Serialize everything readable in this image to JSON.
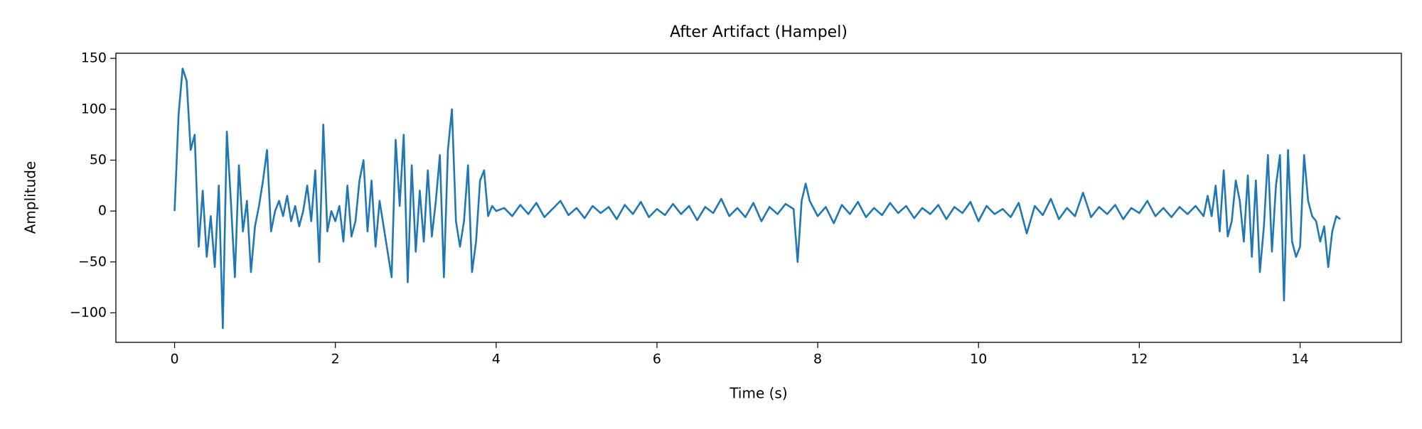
{
  "chart_data": {
    "type": "line",
    "title": "After Artifact (Hampel)",
    "x_label": "Time (s)",
    "y_label": "Amplitude",
    "xlim": [
      -0.73,
      15.26
    ],
    "ylim": [
      -129,
      155
    ],
    "xticks": [
      0,
      2,
      4,
      6,
      8,
      10,
      12,
      14
    ],
    "yticks": [
      {
        "value": -100,
        "label": "−100"
      },
      {
        "value": -50,
        "label": "−50"
      },
      0,
      50,
      100,
      150
    ],
    "color": "#1f77b4",
    "x": [
      0,
      0.05,
      0.1,
      0.15,
      0.2,
      0.25,
      0.3,
      0.35,
      0.4,
      0.45,
      0.5,
      0.55,
      0.6,
      0.65,
      0.7,
      0.75,
      0.8,
      0.85,
      0.9,
      0.95,
      1.0,
      1.05,
      1.1,
      1.15,
      1.2,
      1.25,
      1.3,
      1.35,
      1.4,
      1.45,
      1.5,
      1.55,
      1.6,
      1.65,
      1.7,
      1.75,
      1.8,
      1.85,
      1.9,
      1.95,
      2.0,
      2.05,
      2.1,
      2.15,
      2.2,
      2.25,
      2.3,
      2.35,
      2.4,
      2.45,
      2.5,
      2.55,
      2.6,
      2.65,
      2.7,
      2.75,
      2.8,
      2.85,
      2.9,
      2.95,
      3.0,
      3.05,
      3.1,
      3.15,
      3.2,
      3.25,
      3.3,
      3.35,
      3.4,
      3.45,
      3.5,
      3.55,
      3.6,
      3.65,
      3.7,
      3.75,
      3.8,
      3.85,
      3.9,
      3.95,
      4.0,
      4.1,
      4.2,
      4.3,
      4.4,
      4.5,
      4.6,
      4.7,
      4.8,
      4.9,
      5.0,
      5.1,
      5.2,
      5.3,
      5.4,
      5.5,
      5.6,
      5.7,
      5.8,
      5.9,
      6.0,
      6.1,
      6.2,
      6.3,
      6.4,
      6.5,
      6.6,
      6.7,
      6.8,
      6.9,
      7.0,
      7.1,
      7.2,
      7.3,
      7.4,
      7.5,
      7.6,
      7.7,
      7.75,
      7.8,
      7.85,
      7.9,
      8.0,
      8.1,
      8.2,
      8.3,
      8.4,
      8.5,
      8.6,
      8.7,
      8.8,
      8.9,
      9.0,
      9.1,
      9.2,
      9.3,
      9.4,
      9.5,
      9.6,
      9.7,
      9.8,
      9.9,
      10.0,
      10.1,
      10.2,
      10.3,
      10.4,
      10.5,
      10.6,
      10.7,
      10.8,
      10.9,
      11.0,
      11.1,
      11.2,
      11.3,
      11.4,
      11.5,
      11.6,
      11.7,
      11.8,
      11.9,
      12.0,
      12.1,
      12.2,
      12.3,
      12.4,
      12.5,
      12.6,
      12.7,
      12.8,
      12.85,
      12.9,
      12.95,
      13.0,
      13.05,
      13.1,
      13.15,
      13.2,
      13.25,
      13.3,
      13.35,
      13.4,
      13.45,
      13.5,
      13.55,
      13.6,
      13.65,
      13.7,
      13.75,
      13.8,
      13.85,
      13.9,
      13.95,
      14.0,
      14.05,
      14.1,
      14.15,
      14.2,
      14.25,
      14.3,
      14.35,
      14.4,
      14.45,
      14.5
    ],
    "values": [
      0,
      95,
      140,
      128,
      60,
      75,
      -35,
      20,
      -45,
      -5,
      -55,
      25,
      -115,
      78,
      10,
      -65,
      45,
      -20,
      10,
      -60,
      -15,
      5,
      30,
      60,
      -20,
      0,
      10,
      -5,
      15,
      -10,
      5,
      -15,
      0,
      25,
      -10,
      40,
      -50,
      85,
      -20,
      0,
      -10,
      5,
      -30,
      25,
      -25,
      -10,
      30,
      50,
      -20,
      30,
      -35,
      10,
      -15,
      -40,
      -65,
      70,
      5,
      75,
      -70,
      45,
      -40,
      20,
      -30,
      40,
      -25,
      10,
      55,
      -65,
      60,
      100,
      -10,
      -35,
      -10,
      45,
      -60,
      -30,
      30,
      40,
      -5,
      5,
      0,
      3,
      -5,
      6,
      -3,
      8,
      -6,
      2,
      10,
      -4,
      3,
      -7,
      5,
      -2,
      4,
      -8,
      6,
      -3,
      9,
      -6,
      2,
      -4,
      7,
      -3,
      5,
      -9,
      4,
      -2,
      12,
      -5,
      3,
      -6,
      8,
      -10,
      4,
      -3,
      7,
      2,
      -50,
      10,
      27,
      10,
      -5,
      4,
      -12,
      6,
      -3,
      9,
      -6,
      3,
      -4,
      8,
      -2,
      5,
      -7,
      3,
      -3,
      6,
      -8,
      4,
      -2,
      9,
      -10,
      5,
      -3,
      2,
      -6,
      8,
      -22,
      5,
      -4,
      12,
      -8,
      3,
      -5,
      18,
      -6,
      4,
      -3,
      6,
      -8,
      3,
      -2,
      10,
      -5,
      3,
      -6,
      4,
      -3,
      5,
      -5,
      15,
      -5,
      25,
      -20,
      40,
      -25,
      -10,
      30,
      10,
      -30,
      35,
      -45,
      30,
      -60,
      -15,
      55,
      -40,
      25,
      55,
      -88,
      60,
      -30,
      -45,
      -35,
      55,
      10,
      -5,
      -10,
      -30,
      -15,
      -55,
      -20,
      -5,
      -8
    ]
  }
}
